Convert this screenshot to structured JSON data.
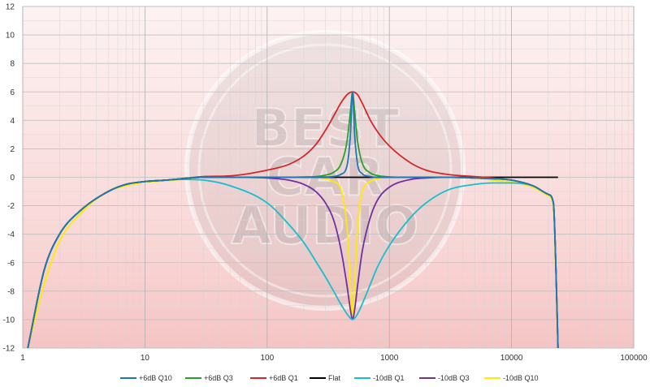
{
  "chart_data": {
    "type": "line",
    "x_scale": "log",
    "xlim": [
      1,
      100000
    ],
    "ylim": [
      -12,
      12
    ],
    "x_ticks": [
      1,
      10,
      100,
      1000,
      10000,
      100000
    ],
    "x_tick_labels": [
      "1",
      "10",
      "100",
      "1000",
      "10000",
      "100000"
    ],
    "y_ticks": [
      -12,
      -10,
      -8,
      -6,
      -4,
      -2,
      0,
      2,
      4,
      6,
      8,
      10,
      12
    ],
    "y_tick_labels": [
      "-12",
      "-10",
      "-8",
      "-6",
      "-4",
      "-2",
      "0",
      "2",
      "4",
      "6",
      "8",
      "10",
      "12"
    ],
    "grid": true,
    "legend_position": "bottom",
    "background": "pink-gradient",
    "watermark_text": [
      "BEST",
      "CAR",
      "AUDIO"
    ],
    "x": [
      1.1,
      1.5,
      2,
      3,
      5,
      7,
      10,
      15,
      20,
      30,
      50,
      100,
      150,
      200,
      250,
      300,
      350,
      400,
      450,
      480,
      500,
      520,
      550,
      600,
      700,
      800,
      1000,
      1500,
      2000,
      3000,
      5000,
      7000,
      10000,
      15000,
      20000,
      22000,
      23000,
      24000
    ],
    "series": [
      {
        "name": "+6dB Q10",
        "color": "#1f77b4",
        "values": [
          -12,
          -6.5,
          -4,
          -2.3,
          -1.0,
          -0.5,
          -0.3,
          -0.2,
          -0.1,
          0,
          0,
          0,
          0,
          0,
          0,
          0.02,
          0.05,
          0.2,
          0.8,
          3.0,
          6.0,
          3.0,
          0.9,
          0.25,
          0.05,
          0,
          0,
          0,
          0,
          0,
          -0.05,
          -0.1,
          -0.2,
          -0.6,
          -1.2,
          -1.8,
          -6,
          -12
        ]
      },
      {
        "name": "+6dB Q3",
        "color": "#2ca02c",
        "values": [
          -12,
          -6.5,
          -4,
          -2.3,
          -1.0,
          -0.5,
          -0.3,
          -0.2,
          -0.1,
          0,
          0,
          0,
          0,
          0.02,
          0.05,
          0.15,
          0.35,
          0.9,
          2.5,
          4.6,
          6.0,
          4.6,
          2.5,
          1.0,
          0.3,
          0.12,
          0.03,
          0,
          0,
          0,
          -0.05,
          -0.1,
          -0.2,
          -0.6,
          -1.2,
          -1.8,
          -6,
          -12
        ]
      },
      {
        "name": "+6dB Q1",
        "color": "#d62728",
        "values": [
          -12,
          -6.5,
          -4,
          -2.3,
          -1.0,
          -0.5,
          -0.3,
          -0.2,
          -0.1,
          0.05,
          0.1,
          0.5,
          0.9,
          1.5,
          2.3,
          3.3,
          4.3,
          5.2,
          5.8,
          5.97,
          6.0,
          5.97,
          5.8,
          5.2,
          4.0,
          3.2,
          2.2,
          1.0,
          0.5,
          0.2,
          0.05,
          -0.05,
          -0.2,
          -0.6,
          -1.2,
          -1.8,
          -6,
          -12
        ]
      },
      {
        "name": "Flat",
        "color": "#000000",
        "values": [
          -12,
          -6.5,
          -4,
          -2.3,
          -1.0,
          -0.5,
          -0.3,
          -0.2,
          -0.1,
          0,
          0,
          0,
          0,
          0,
          0,
          0,
          0,
          0,
          0,
          0,
          0,
          0,
          0,
          0,
          0,
          0,
          0,
          0,
          0,
          0,
          0,
          0,
          0,
          0,
          0,
          0,
          0,
          0
        ]
      },
      {
        "name": "-10dB Q1",
        "color": "#17becf",
        "values": [
          -12,
          -6.5,
          -4,
          -2.3,
          -1.0,
          -0.5,
          -0.3,
          -0.2,
          -0.15,
          -0.2,
          -0.6,
          -1.8,
          -3.3,
          -4.6,
          -5.9,
          -7.0,
          -8.0,
          -8.9,
          -9.6,
          -9.9,
          -10.0,
          -9.9,
          -9.6,
          -8.9,
          -7.5,
          -6.3,
          -4.8,
          -2.8,
          -1.8,
          -0.9,
          -0.5,
          -0.4,
          -0.4,
          -0.6,
          -1.2,
          -1.8,
          -6,
          -12
        ]
      },
      {
        "name": "-10dB Q3",
        "color": "#7030a0",
        "values": [
          -12,
          -6.5,
          -4,
          -2.3,
          -1.0,
          -0.5,
          -0.3,
          -0.2,
          -0.1,
          0,
          0,
          -0.05,
          -0.2,
          -0.5,
          -1.0,
          -1.8,
          -3.0,
          -5.0,
          -7.6,
          -9.3,
          -10.0,
          -9.3,
          -7.6,
          -5.2,
          -2.8,
          -1.6,
          -0.7,
          -0.15,
          -0.05,
          0,
          -0.05,
          -0.1,
          -0.2,
          -0.6,
          -1.2,
          -1.8,
          -6,
          -12
        ]
      },
      {
        "name": "-10dB Q10",
        "color": "#ffeb00",
        "values": [
          -12,
          -7.5,
          -4.5,
          -2.5,
          -1.0,
          -0.6,
          -0.35,
          -0.25,
          -0.15,
          0,
          0,
          0,
          0,
          0,
          0,
          -0.1,
          -0.3,
          -0.8,
          -3.5,
          -7.5,
          -10.0,
          -7.5,
          -3.5,
          -1.0,
          -0.3,
          -0.1,
          0,
          0,
          0,
          0,
          -0.05,
          -0.2,
          -0.35,
          -0.7,
          -1.3,
          -2.0,
          -6.5,
          -12
        ]
      }
    ]
  }
}
